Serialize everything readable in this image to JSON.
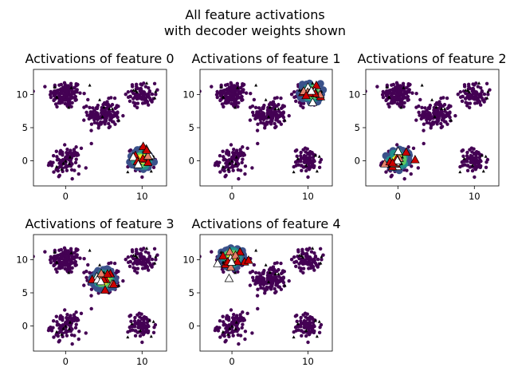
{
  "chart_data": {
    "type": "scatter",
    "suptitle_lines": [
      "All feature activations",
      "with decoder weights shown"
    ],
    "xlim": [
      -4.2,
      13.2
    ],
    "ylim": [
      -3.8,
      13.8
    ],
    "xticks": [
      0,
      10
    ],
    "yticks": [
      0,
      5,
      10
    ],
    "grid": false,
    "legend": "none",
    "colormap": "viridis",
    "clusters": [
      {
        "center": [
          0,
          10
        ],
        "spread": 1.05,
        "n": 140
      },
      {
        "center": [
          5,
          7
        ],
        "spread": 1.05,
        "n": 140
      },
      {
        "center": [
          10,
          10
        ],
        "spread": 0.85,
        "n": 80
      },
      {
        "center": [
          0,
          0
        ],
        "spread": 0.95,
        "n": 100
      },
      {
        "center": [
          10,
          0
        ],
        "spread": 0.9,
        "n": 80
      }
    ],
    "panels": [
      {
        "title": "Activations of feature 0",
        "active_center": [
          10,
          0.2
        ],
        "weight_center": [
          10,
          0.6
        ]
      },
      {
        "title": "Activations of feature 1",
        "active_center": [
          10.5,
          10.4
        ],
        "weight_center": [
          10.5,
          10.2
        ]
      },
      {
        "title": "Activations of feature 2",
        "active_center": [
          0,
          0.2
        ],
        "weight_center": [
          0,
          0.2
        ]
      },
      {
        "title": "Activations of feature 3",
        "active_center": [
          5,
          7
        ],
        "weight_center": [
          5,
          7
        ]
      },
      {
        "title": "Activations of feature 4",
        "active_center": [
          0,
          10.4
        ],
        "weight_center": [
          0,
          10
        ]
      }
    ],
    "colors": {
      "inactive": "#440154",
      "mid": "#21918c",
      "high": "#5ec962",
      "top": "#fde725",
      "weight_fill": "#cc0000",
      "weight_edge": "#000000"
    }
  }
}
